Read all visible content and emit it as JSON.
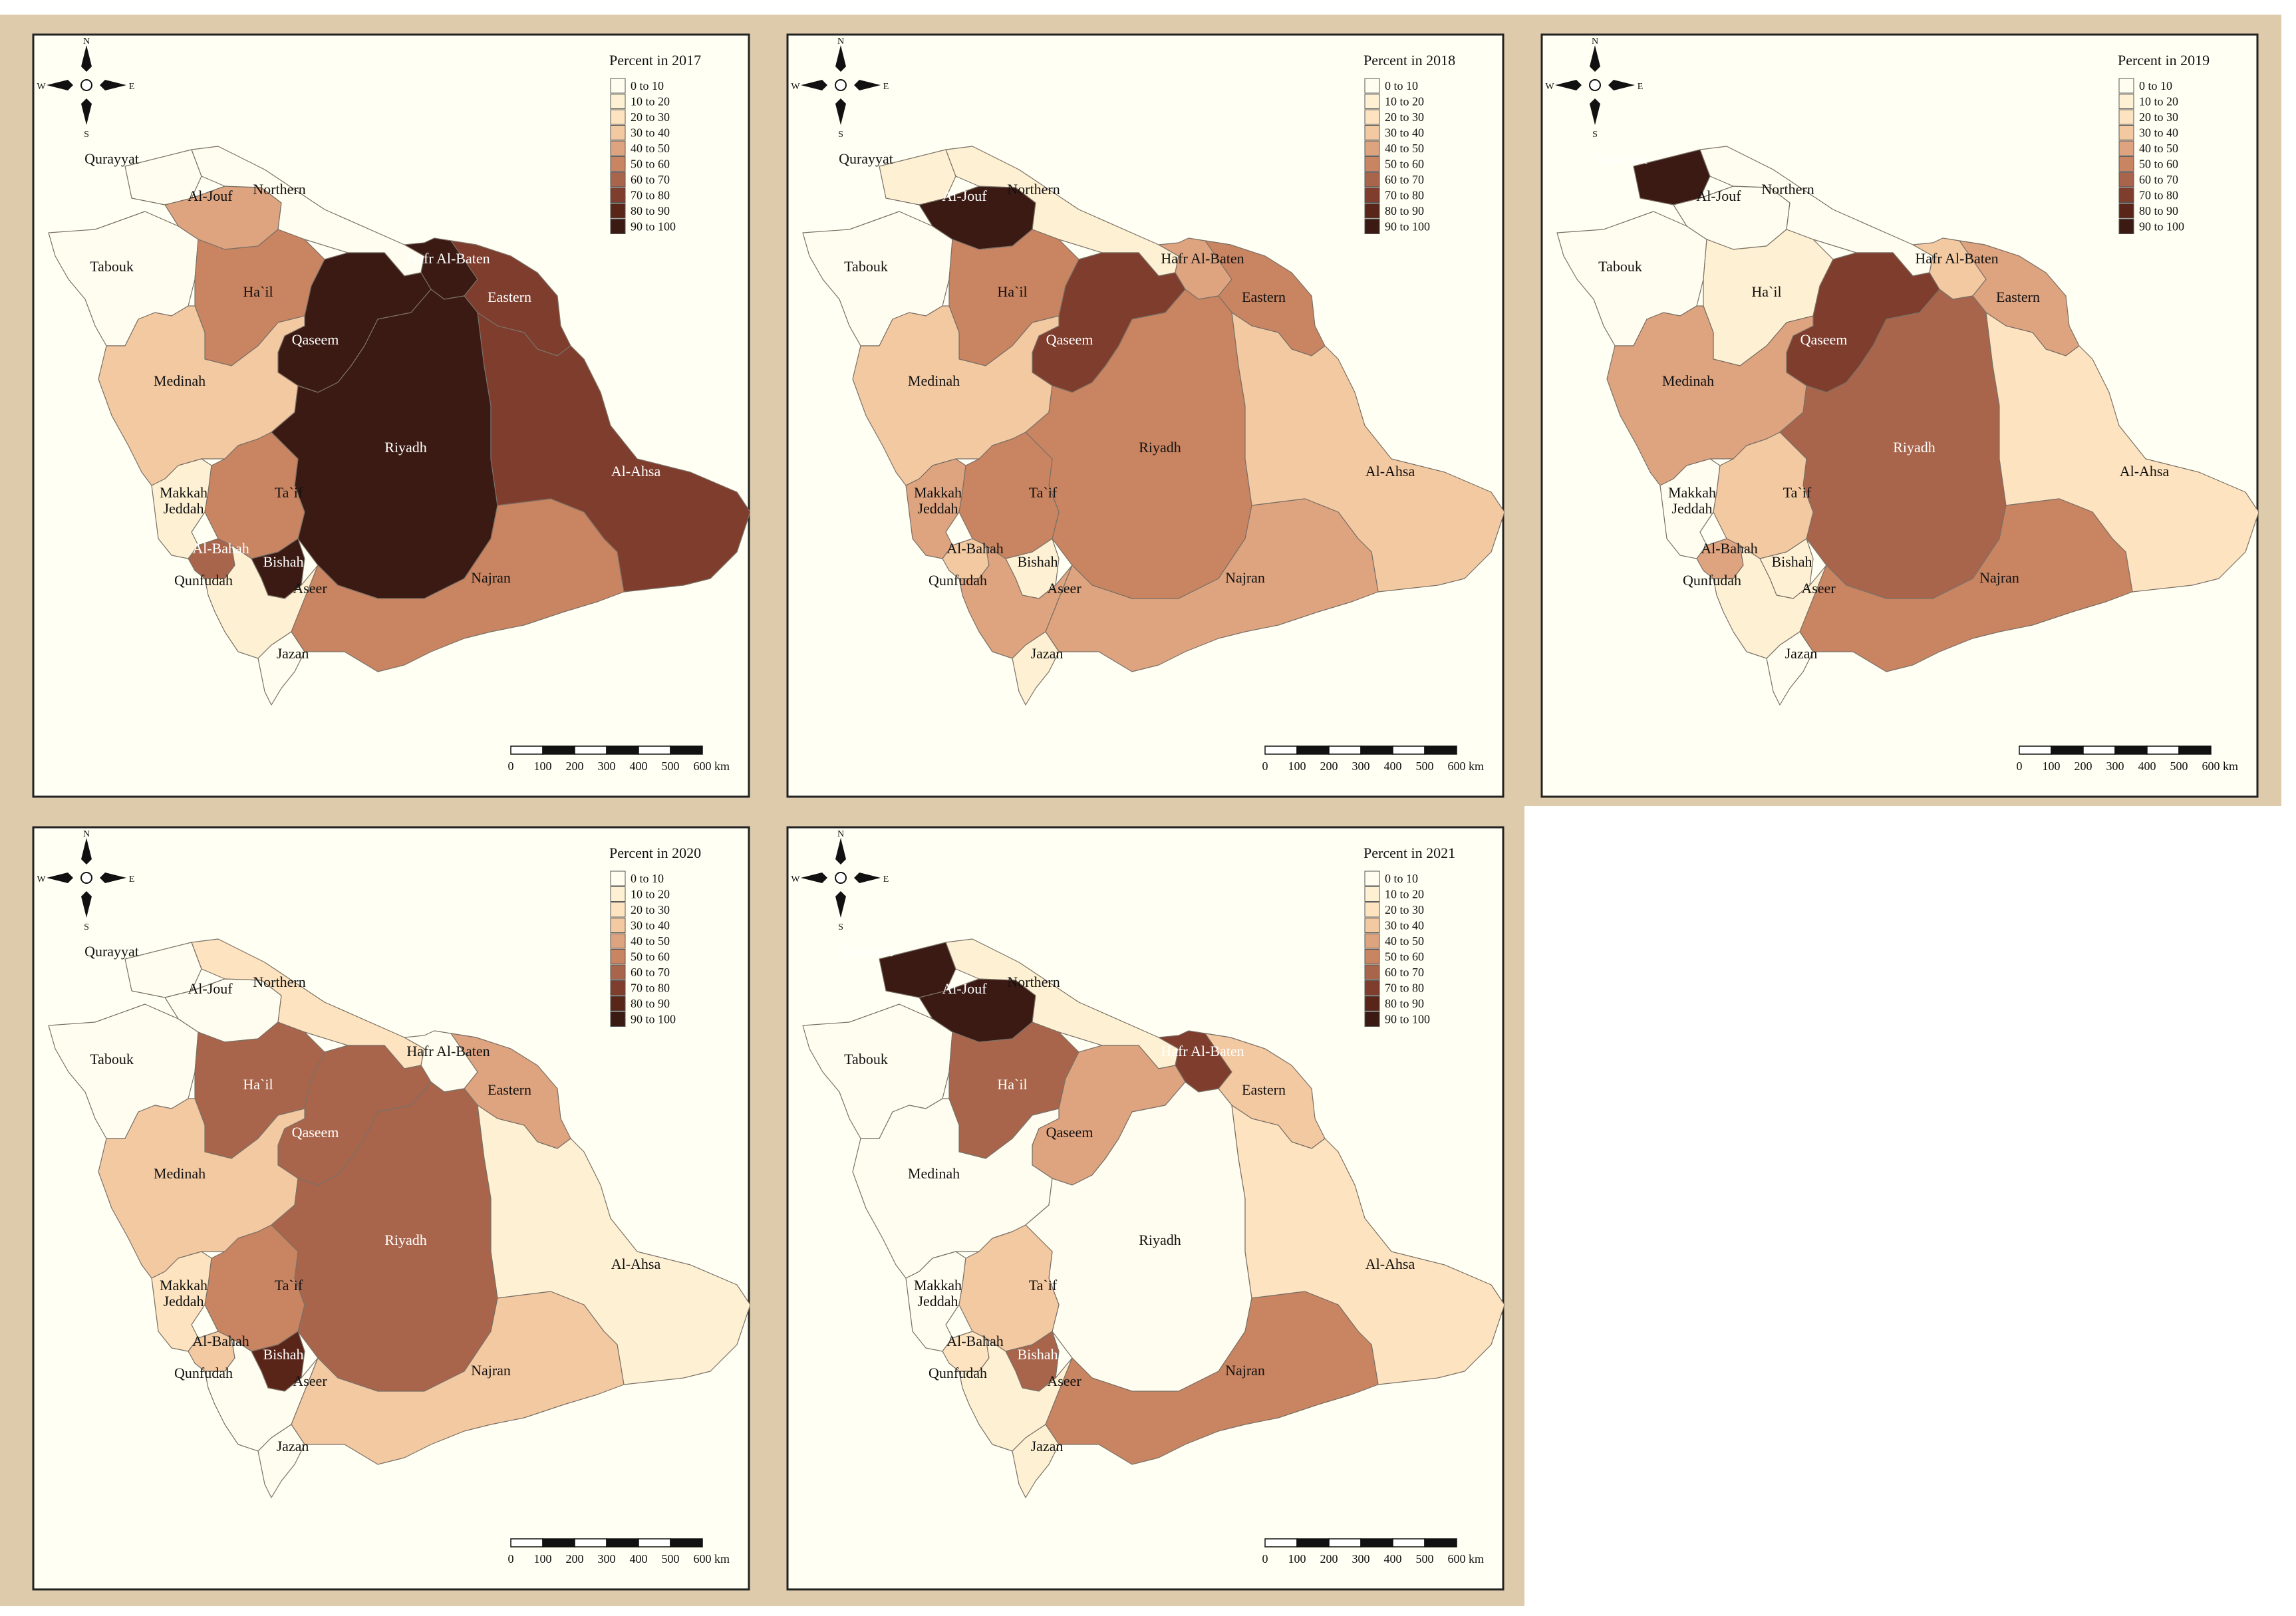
{
  "legend_classes": [
    "0 to 10",
    "10 to 20",
    "20 to 30",
    "30 to 40",
    "40 to 50",
    "50 to 60",
    "60 to 70",
    "70 to 80",
    "80 to 90",
    "90 to 100"
  ],
  "class_colors": [
    "#fffdef",
    "#fef1d3",
    "#fde3bf",
    "#f3c9a2",
    "#dea37f",
    "#c98462",
    "#a8654b",
    "#7f3d2d",
    "#5a2519",
    "#3a1a13"
  ],
  "compass": {
    "n": "N",
    "s": "S",
    "e": "E",
    "w": "W"
  },
  "scale_bar": {
    "ticks": [
      "0",
      "100",
      "200",
      "300",
      "400",
      "500",
      "600"
    ],
    "unit": "km"
  },
  "region_names": {
    "qurayyat": "Qurayyat",
    "aljouf": "Al-Jouf",
    "northern": "Northern",
    "tabouk": "Tabouk",
    "hail": "Ha`il",
    "hafr": "Hafr Al-Baten",
    "eastern": "Eastern",
    "qaseem": "Qaseem",
    "medinah": "Medinah",
    "riyadh": "Riyadh",
    "alahsa": "Al-Ahsa",
    "makkah": "Makkah",
    "jeddah": "Jeddah",
    "taif": "Ta`if",
    "albahah": "Al-Bahah",
    "bishah": "Bishah",
    "qunfudah": "Qunfudah",
    "aseer": "Aseer",
    "najran": "Najran",
    "jazan": "Jazan"
  },
  "maps": [
    {
      "title": "Percent in 2017",
      "classes": {
        "qurayyat": 0,
        "aljouf": 4,
        "northern": 0,
        "tabouk": 0,
        "hail": 5,
        "hafr": 9,
        "eastern": 7,
        "qaseem": 9,
        "medinah": 3,
        "riyadh": 9,
        "alahsa": 7,
        "makkah": 1,
        "taif": 5,
        "albahah": 6,
        "bishah": 9,
        "aseer": 1,
        "najran": 5,
        "jazan": 0
      }
    },
    {
      "title": "Percent in 2018",
      "classes": {
        "qurayyat": 1,
        "aljouf": 9,
        "northern": 1,
        "tabouk": 0,
        "hail": 5,
        "hafr": 4,
        "eastern": 5,
        "qaseem": 7,
        "medinah": 3,
        "riyadh": 5,
        "alahsa": 3,
        "makkah": 4,
        "taif": 5,
        "albahah": 3,
        "bishah": 1,
        "aseer": 4,
        "najran": 4,
        "jazan": 1
      }
    },
    {
      "title": "Percent in 2019",
      "classes": {
        "qurayyat": 9,
        "aljouf": 0,
        "northern": 0,
        "tabouk": 0,
        "hail": 1,
        "hafr": 3,
        "eastern": 4,
        "qaseem": 7,
        "medinah": 4,
        "riyadh": 6,
        "alahsa": 2,
        "makkah": 0,
        "taif": 3,
        "albahah": 4,
        "bishah": 1,
        "aseer": 1,
        "najran": 5,
        "jazan": 0
      }
    },
    {
      "title": "Percent in  2020",
      "classes": {
        "qurayyat": 0,
        "aljouf": 0,
        "northern": 2,
        "tabouk": 0,
        "hail": 6,
        "hafr": 0,
        "eastern": 4,
        "qaseem": 6,
        "medinah": 3,
        "riyadh": 6,
        "alahsa": 1,
        "makkah": 2,
        "taif": 5,
        "albahah": 3,
        "bishah": 8,
        "aseer": 0,
        "najran": 3,
        "jazan": 0
      }
    },
    {
      "title": "Percent in  2021",
      "classes": {
        "qurayyat": 9,
        "aljouf": 9,
        "northern": 1,
        "tabouk": 0,
        "hail": 6,
        "hafr": 7,
        "eastern": 3,
        "qaseem": 4,
        "medinah": 0,
        "riyadh": 0,
        "alahsa": 2,
        "makkah": 0,
        "taif": 3,
        "albahah": 2,
        "bishah": 6,
        "aseer": 1,
        "najran": 5,
        "jazan": 1
      }
    }
  ]
}
